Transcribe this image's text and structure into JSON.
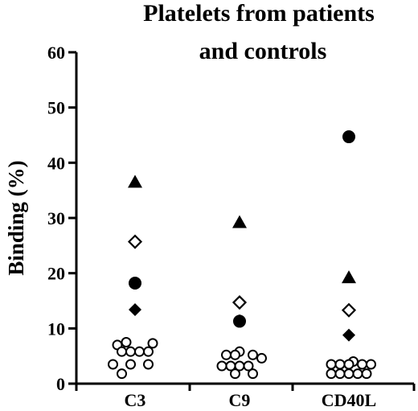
{
  "chart_data": {
    "type": "scatter",
    "title_lines": [
      "Platelets from patients",
      "and controls"
    ],
    "xlabel": "",
    "ylabel": "Binding (%)",
    "ylim": [
      0,
      60
    ],
    "yticks": [
      0,
      10,
      20,
      30,
      40,
      50,
      60
    ],
    "categories": [
      "C3",
      "C9",
      "CD40L"
    ],
    "grid": false,
    "legend": "none",
    "series": [
      {
        "marker": "filled-triangle",
        "color": "#000000",
        "points": [
          {
            "category": "C3",
            "y": 36.5
          },
          {
            "category": "C9",
            "y": 29.2
          },
          {
            "category": "CD40L",
            "y": 19.2
          }
        ]
      },
      {
        "marker": "open-diamond",
        "color": "#000000",
        "points": [
          {
            "category": "C3",
            "y": 25.7
          },
          {
            "category": "C9",
            "y": 14.7
          },
          {
            "category": "CD40L",
            "y": 13.3
          }
        ]
      },
      {
        "marker": "filled-circle",
        "color": "#000000",
        "points": [
          {
            "category": "C3",
            "y": 18.2
          },
          {
            "category": "C9",
            "y": 11.3
          },
          {
            "category": "CD40L",
            "y": 44.7
          }
        ]
      },
      {
        "marker": "filled-diamond",
        "color": "#000000",
        "points": [
          {
            "category": "C3",
            "y": 13.4
          },
          {
            "category": "C9",
            "y": 11.4
          },
          {
            "category": "CD40L",
            "y": 8.8
          }
        ]
      },
      {
        "marker": "open-circle",
        "color": "#000000",
        "points": [
          {
            "category": "C3",
            "y": 7.5,
            "slot": -1
          },
          {
            "category": "C3",
            "y": 7.3,
            "slot": 2
          },
          {
            "category": "C3",
            "y": 7.0,
            "slot": -2
          },
          {
            "category": "C3",
            "y": 5.8,
            "slot": -1.5
          },
          {
            "category": "C3",
            "y": 5.8,
            "slot": -0.5
          },
          {
            "category": "C3",
            "y": 5.8,
            "slot": 0.5
          },
          {
            "category": "C3",
            "y": 5.8,
            "slot": 1.5
          },
          {
            "category": "C3",
            "y": 3.5,
            "slot": -2.5
          },
          {
            "category": "C3",
            "y": 3.5,
            "slot": -0.5
          },
          {
            "category": "C3",
            "y": 3.5,
            "slot": 1.5
          },
          {
            "category": "C3",
            "y": 1.8,
            "slot": -1.5
          },
          {
            "category": "C9",
            "y": 5.8,
            "slot": 0
          },
          {
            "category": "C9",
            "y": 5.2,
            "slot": -1.5
          },
          {
            "category": "C9",
            "y": 5.2,
            "slot": -0.5
          },
          {
            "category": "C9",
            "y": 5.2,
            "slot": 1.5
          },
          {
            "category": "C9",
            "y": 4.6,
            "slot": 2.5
          },
          {
            "category": "C9",
            "y": 3.2,
            "slot": -2
          },
          {
            "category": "C9",
            "y": 3.2,
            "slot": -1
          },
          {
            "category": "C9",
            "y": 3.2,
            "slot": 0
          },
          {
            "category": "C9",
            "y": 3.2,
            "slot": 1
          },
          {
            "category": "C9",
            "y": 1.8,
            "slot": -0.5
          },
          {
            "category": "C9",
            "y": 1.8,
            "slot": 1.5
          },
          {
            "category": "CD40L",
            "y": 4.0,
            "slot": 0.5
          },
          {
            "category": "CD40L",
            "y": 3.5,
            "slot": -2
          },
          {
            "category": "CD40L",
            "y": 3.5,
            "slot": -1
          },
          {
            "category": "CD40L",
            "y": 3.5,
            "slot": 0
          },
          {
            "category": "CD40L",
            "y": 3.5,
            "slot": 1.5
          },
          {
            "category": "CD40L",
            "y": 3.5,
            "slot": 2.5
          },
          {
            "category": "CD40L",
            "y": 1.8,
            "slot": -2
          },
          {
            "category": "CD40L",
            "y": 1.8,
            "slot": -1
          },
          {
            "category": "CD40L",
            "y": 1.8,
            "slot": 0
          },
          {
            "category": "CD40L",
            "y": 1.8,
            "slot": 1
          },
          {
            "category": "CD40L",
            "y": 1.8,
            "slot": 2
          }
        ]
      }
    ]
  }
}
